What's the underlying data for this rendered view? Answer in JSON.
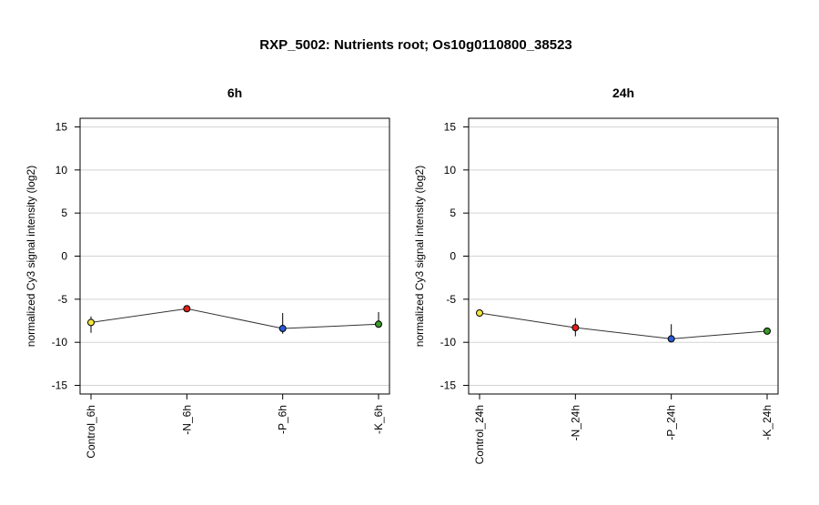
{
  "figure": {
    "title": "RXP_5002: Nutrients root; Os10g0110800_38523"
  },
  "chart_data": [
    {
      "type": "line",
      "title": "6h",
      "ylabel": "normalized Cy3 signal intensity (log2)",
      "xlabel": "",
      "ylim": [
        -16,
        16
      ],
      "yticks": [
        -15,
        -10,
        -5,
        0,
        5,
        10,
        15
      ],
      "grid": true,
      "categories": [
        "Control_6h",
        "-N_6h",
        "-P_6h",
        "-K_6h"
      ],
      "values": [
        -7.7,
        -6.1,
        -8.4,
        -7.9
      ],
      "error_low": [
        -8.9,
        -6.1,
        -9.0,
        -8.3
      ],
      "error_high": [
        -7.0,
        -6.1,
        -6.6,
        -6.5
      ],
      "point_colors": [
        "#f2e63a",
        "#e0201b",
        "#2a5bd7",
        "#3a9a2a"
      ]
    },
    {
      "type": "line",
      "title": "24h",
      "ylabel": "normalized Cy3 signal intensity (log2)",
      "xlabel": "",
      "ylim": [
        -16,
        16
      ],
      "yticks": [
        -15,
        -10,
        -5,
        0,
        5,
        10,
        15
      ],
      "grid": true,
      "categories": [
        "Control_24h",
        "-N_24h",
        "-P_24h",
        "-K_24h"
      ],
      "values": [
        -6.6,
        -8.3,
        -9.6,
        -8.7
      ],
      "error_low": [
        -6.9,
        -9.3,
        -9.8,
        -8.9
      ],
      "error_high": [
        -6.3,
        -7.2,
        -7.9,
        -8.5
      ],
      "point_colors": [
        "#f2e63a",
        "#e0201b",
        "#2a5bd7",
        "#3a9a2a"
      ]
    }
  ]
}
